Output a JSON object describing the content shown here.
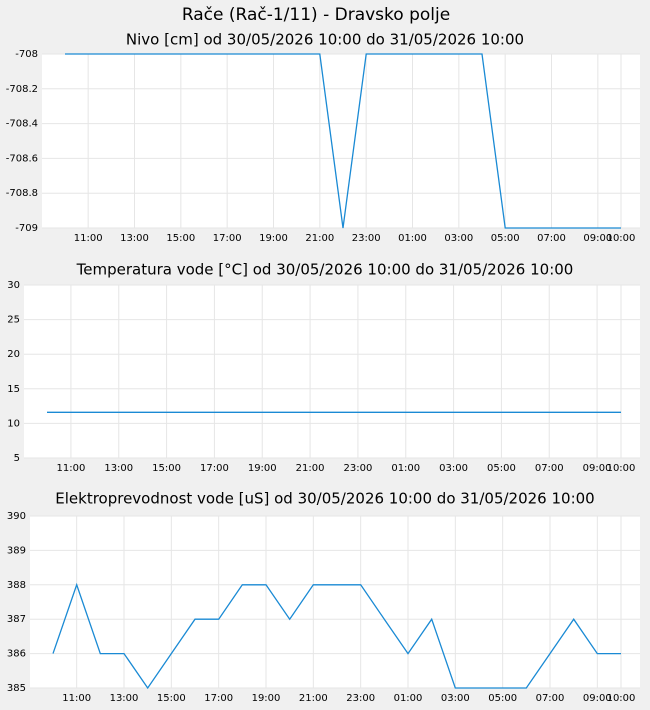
{
  "title": "Rače (Rač-1/11) - Dravsko polje",
  "chart_data": [
    {
      "type": "line",
      "title": "Nivo [cm] od 30/05/2026 10:00 do 31/05/2026 10:00",
      "categories": [
        null,
        "11:00",
        null,
        "13:00",
        null,
        "15:00",
        null,
        "17:00",
        null,
        "19:00",
        null,
        "21:00",
        null,
        "23:00",
        null,
        "01:00",
        null,
        "03:00",
        null,
        "05:00",
        null,
        "07:00",
        null,
        "09:00",
        "10:00"
      ],
      "values": [
        -708,
        -708,
        -708,
        -708,
        -708,
        -708,
        -708,
        -708,
        -708,
        -708,
        -708,
        -708,
        -709,
        -708,
        -708,
        -708,
        -708,
        -708,
        -708,
        -709,
        -709,
        -709,
        -709,
        -709,
        -709
      ],
      "color": "#1a8ad4",
      "ylim": [
        -709,
        -708
      ],
      "yticks": [
        -708,
        -708.2,
        -708.4,
        -708.6,
        -708.8,
        -709
      ],
      "grid": true
    },
    {
      "type": "line",
      "title": "Temperatura vode [°C] od 30/05/2026 10:00 do 31/05/2026 10:00",
      "categories": [
        null,
        "11:00",
        null,
        "13:00",
        null,
        "15:00",
        null,
        "17:00",
        null,
        "19:00",
        null,
        "21:00",
        null,
        "23:00",
        null,
        "01:00",
        null,
        "03:00",
        null,
        "05:00",
        null,
        "07:00",
        null,
        "09:00",
        "10:00"
      ],
      "values": [
        11.6,
        11.6,
        11.6,
        11.6,
        11.6,
        11.6,
        11.6,
        11.6,
        11.6,
        11.6,
        11.6,
        11.6,
        11.6,
        11.6,
        11.6,
        11.6,
        11.6,
        11.6,
        11.6,
        11.6,
        11.6,
        11.6,
        11.6,
        11.6,
        11.6
      ],
      "color": "#1a8ad4",
      "ylim": [
        5,
        30
      ],
      "yticks": [
        5,
        10,
        15,
        20,
        25,
        30
      ],
      "grid": true
    },
    {
      "type": "line",
      "title": "Elektroprevodnost vode [uS] od 30/05/2026 10:00 do 31/05/2026 10:00",
      "categories": [
        null,
        "11:00",
        null,
        "13:00",
        null,
        "15:00",
        null,
        "17:00",
        null,
        "19:00",
        null,
        "21:00",
        null,
        "23:00",
        null,
        "01:00",
        null,
        "03:00",
        null,
        "05:00",
        null,
        "07:00",
        null,
        "09:00",
        "10:00"
      ],
      "values": [
        386,
        388,
        386,
        386,
        385,
        386,
        387,
        387,
        388,
        388,
        387,
        388,
        388,
        388,
        387,
        386,
        387,
        385,
        385,
        385,
        385,
        386,
        387,
        386,
        386
      ],
      "color": "#1a8ad4",
      "ylim": [
        385,
        390
      ],
      "yticks": [
        385,
        386,
        387,
        388,
        389,
        390
      ],
      "grid": true
    }
  ]
}
